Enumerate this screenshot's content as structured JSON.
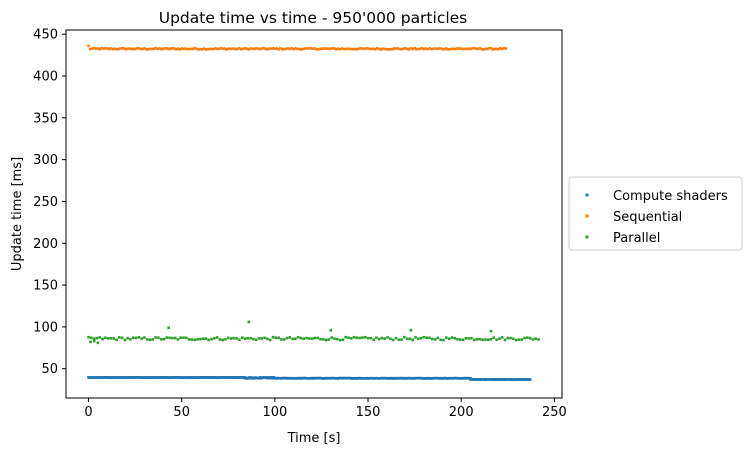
{
  "chart_data": {
    "type": "scatter",
    "title": "Update time vs time - 950'000 particles",
    "xlabel": "Time [s]",
    "ylabel": "Update time [ms]",
    "xlim": [
      -12.1,
      254.1
    ],
    "ylim": [
      15.0,
      455.0
    ],
    "xticks": [
      0,
      50,
      100,
      150,
      200,
      250
    ],
    "yticks": [
      50,
      100,
      150,
      200,
      250,
      300,
      350,
      400,
      450
    ],
    "grid": false,
    "legend_position": "outside-right",
    "series": [
      {
        "name": "Compute shaders",
        "color": "#1f77b4",
        "segments": [
          {
            "x_start": 0,
            "x_end": 84,
            "step": 0.5,
            "y": 39.5
          },
          {
            "x_start": 84,
            "x_end": 205,
            "step": 0.5,
            "y": 38.6
          },
          {
            "x_start": 205,
            "x_end": 237,
            "step": 0.5,
            "y": 37.2
          }
        ]
      },
      {
        "name": "Sequential",
        "color": "#ff7f0e",
        "x_start": 0,
        "x_end": 224,
        "step": 1,
        "y": 432.5,
        "y_first": 436
      },
      {
        "name": "Parallel",
        "color": "#2ca02c",
        "x_start": 0,
        "x_end": 242,
        "step": 1.5,
        "y": 86,
        "outliers": [
          [
            43,
            99
          ],
          [
            86,
            106
          ],
          [
            130,
            96
          ],
          [
            173,
            96
          ],
          [
            216,
            95
          ],
          [
            1,
            82
          ],
          [
            3,
            83
          ],
          [
            5,
            81
          ]
        ]
      }
    ]
  }
}
